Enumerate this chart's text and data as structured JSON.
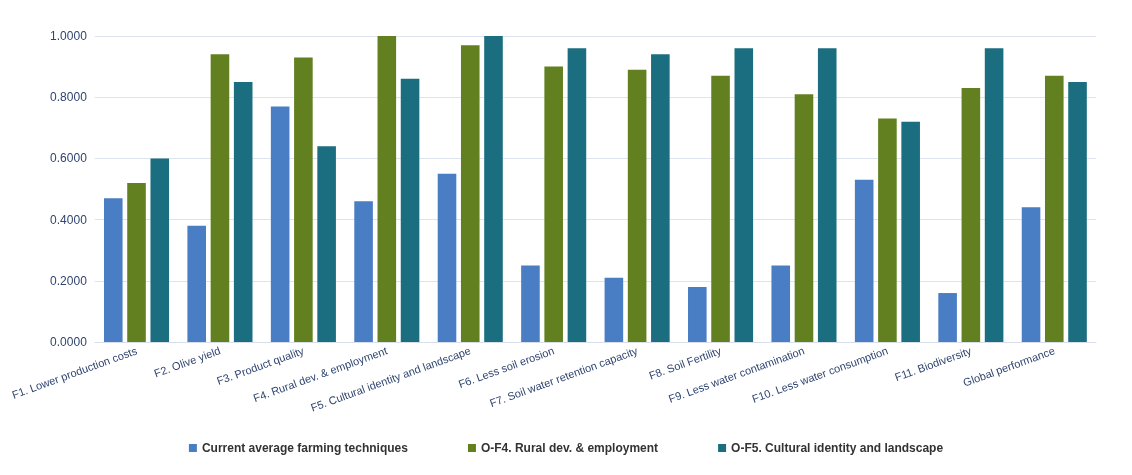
{
  "chart_data": {
    "type": "bar",
    "categories": [
      "F1. Lower production costs",
      "F2. Olive yield",
      "F3. Product quality",
      "F4. Rural dev. & employment",
      "F5. Cultural identity and landscape",
      "F6. Less soil erosion",
      "F7. Soil water retention capacity",
      "F8. Soil Fertility",
      "F9. Less water contamination",
      "F10. Less water consumption",
      "F11. Biodiversity",
      "Global performance"
    ],
    "series": [
      {
        "name": "Current average farming techniques",
        "color": "#4a7ec4",
        "values": [
          0.47,
          0.38,
          0.77,
          0.46,
          0.55,
          0.25,
          0.21,
          0.18,
          0.25,
          0.53,
          0.16,
          0.44
        ]
      },
      {
        "name": "O-F4. Rural dev. & employment",
        "color": "#62801f",
        "values": [
          0.52,
          0.94,
          0.93,
          1.0,
          0.97,
          0.9,
          0.89,
          0.87,
          0.81,
          0.73,
          0.83,
          0.87
        ]
      },
      {
        "name": "O-F5. Cultural identity and landscape",
        "color": "#1b6e80",
        "values": [
          0.6,
          0.85,
          0.64,
          0.86,
          1.0,
          0.96,
          0.94,
          0.96,
          0.96,
          0.72,
          0.96,
          0.85
        ]
      }
    ],
    "ylim": [
      0,
      1
    ],
    "yticks": [
      {
        "value": 0,
        "label": "0.0000"
      },
      {
        "value": 0.2,
        "label": "0.2000"
      },
      {
        "value": 0.4,
        "label": "0.4000"
      },
      {
        "value": 0.6,
        "label": "0.6000"
      },
      {
        "value": 0.8,
        "label": "0.8000"
      },
      {
        "value": 1,
        "label": "1.0000"
      }
    ],
    "grid": "y",
    "legend": "bottom"
  }
}
